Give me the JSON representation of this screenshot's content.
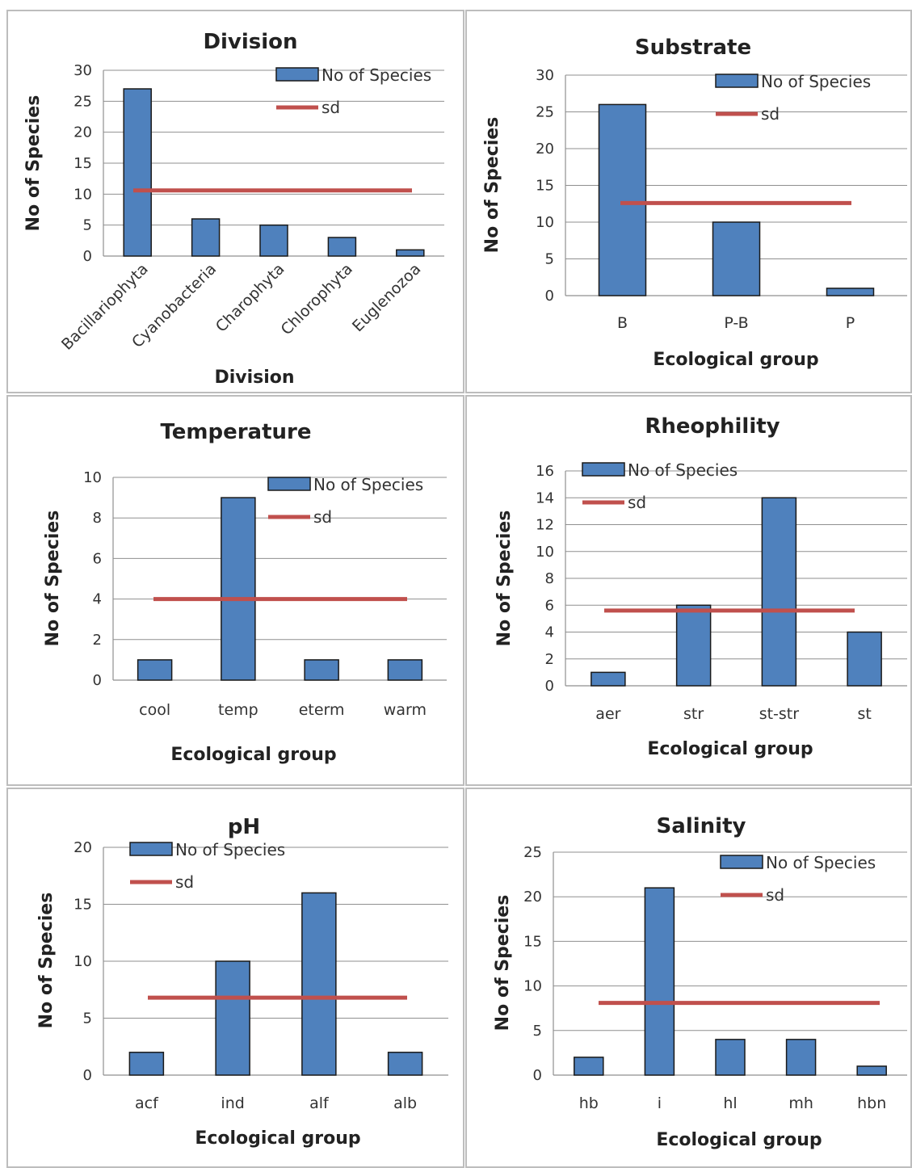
{
  "colors": {
    "bar": "#4f81bd",
    "sd": "#c0504d"
  },
  "chart_data": [
    {
      "type": "bar",
      "title": "Division",
      "ylabel": "No of Species",
      "xlabel": "Division",
      "categories": [
        "Bacillariophyta",
        "Cyanobacteria",
        "Charophyta",
        "Chlorophyta",
        "Euglenozoa"
      ],
      "series": [
        {
          "name": "No of Species",
          "type": "bar",
          "values": [
            27,
            6,
            5,
            3,
            1
          ]
        },
        {
          "name": "sd",
          "type": "line",
          "values": [
            10.6,
            10.6,
            10.6,
            10.6,
            10.6
          ]
        }
      ],
      "ylim": [
        0,
        30
      ],
      "yticks": [
        0,
        5,
        10,
        15,
        20,
        25,
        30
      ],
      "grid": true,
      "legend": "top-right"
    },
    {
      "type": "bar",
      "title": "Substrate",
      "ylabel": "No of Species",
      "xlabel": "Ecological group",
      "categories": [
        "B",
        "P-B",
        "P"
      ],
      "series": [
        {
          "name": "No of Species",
          "type": "bar",
          "values": [
            26,
            10,
            1
          ]
        },
        {
          "name": "sd",
          "type": "line",
          "values": [
            12.6,
            12.6,
            12.6
          ]
        }
      ],
      "ylim": [
        0,
        30
      ],
      "yticks": [
        0,
        5,
        10,
        15,
        20,
        25,
        30
      ],
      "grid": true,
      "legend": "top-right"
    },
    {
      "type": "bar",
      "title": "Temperature",
      "ylabel": "No of Species",
      "xlabel": "Ecological group",
      "categories": [
        "cool",
        "temp",
        "eterm",
        "warm"
      ],
      "series": [
        {
          "name": "No of Species",
          "type": "bar",
          "values": [
            1,
            9,
            1,
            1
          ]
        },
        {
          "name": "sd",
          "type": "line",
          "values": [
            4,
            4,
            4,
            4
          ]
        }
      ],
      "ylim": [
        0,
        10
      ],
      "yticks": [
        0,
        2,
        4,
        6,
        8,
        10
      ],
      "grid": true,
      "legend": "top-right"
    },
    {
      "type": "bar",
      "title": "Rheophility",
      "ylabel": "No of Species",
      "xlabel": "Ecological group",
      "categories": [
        "aer",
        "str",
        "st-str",
        "st"
      ],
      "series": [
        {
          "name": "No of Species",
          "type": "bar",
          "values": [
            1,
            6,
            14,
            4
          ]
        },
        {
          "name": "sd",
          "type": "line",
          "values": [
            5.6,
            5.6,
            5.6,
            5.6
          ]
        }
      ],
      "ylim": [
        0,
        16
      ],
      "yticks": [
        0,
        2,
        4,
        6,
        8,
        10,
        12,
        14,
        16
      ],
      "grid": true,
      "legend": "top-left"
    },
    {
      "type": "bar",
      "title": "pH",
      "ylabel": "No of Species",
      "xlabel": "Ecological group",
      "categories": [
        "acf",
        "ind",
        "alf",
        "alb"
      ],
      "series": [
        {
          "name": "No of Species",
          "type": "bar",
          "values": [
            2,
            10,
            16,
            2
          ]
        },
        {
          "name": "sd",
          "type": "line",
          "values": [
            6.8,
            6.8,
            6.8,
            6.8
          ]
        }
      ],
      "ylim": [
        0,
        20
      ],
      "yticks": [
        0,
        5,
        10,
        15,
        20
      ],
      "grid": true,
      "legend": "top-left"
    },
    {
      "type": "bar",
      "title": "Salinity",
      "ylabel": "No of Species",
      "xlabel": "Ecological group",
      "categories": [
        "hb",
        "i",
        "hl",
        "mh",
        "hbn"
      ],
      "series": [
        {
          "name": "No of Species",
          "type": "bar",
          "values": [
            2,
            21,
            4,
            4,
            1
          ]
        },
        {
          "name": "sd",
          "type": "line",
          "values": [
            8.1,
            8.1,
            8.1,
            8.1,
            8.1
          ]
        }
      ],
      "ylim": [
        0,
        25
      ],
      "yticks": [
        0,
        5,
        10,
        15,
        20,
        25
      ],
      "grid": true,
      "legend": "top-right"
    }
  ]
}
